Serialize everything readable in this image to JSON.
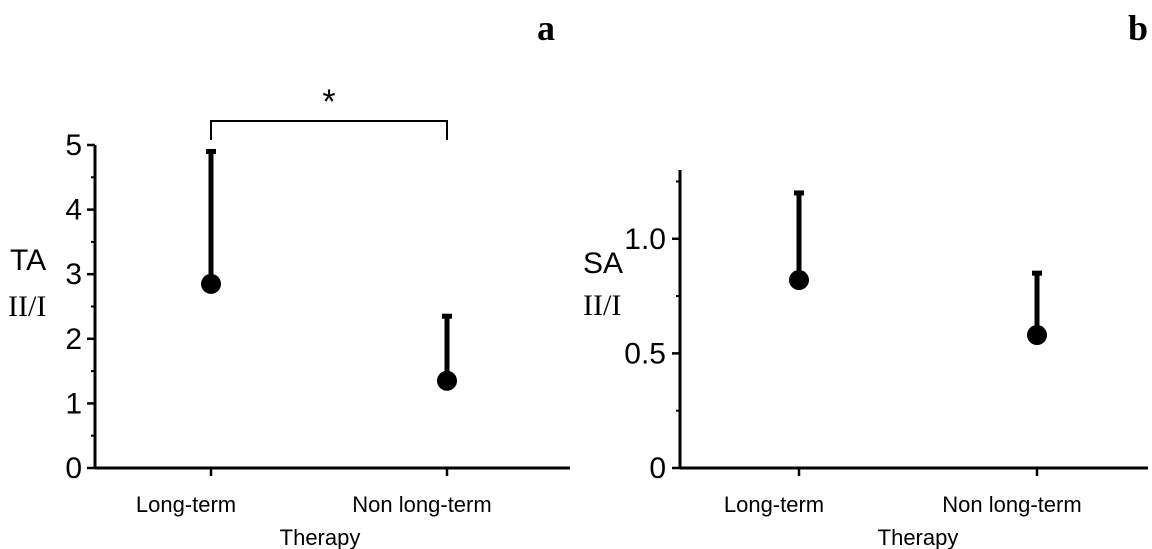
{
  "chart_data": [
    {
      "panel_letter": "a",
      "type": "scatter",
      "ylabel_top": "TA",
      "ylabel_bottom": "II/I",
      "xlabel": "Therapy",
      "categories": [
        "Long-term",
        "Non long-term"
      ],
      "values": [
        2.85,
        1.35
      ],
      "error_upper": [
        4.9,
        2.35
      ],
      "ylim": [
        0,
        5
      ],
      "yticks": [
        {
          "value": 0,
          "label": "0"
        },
        {
          "value": 1,
          "label": "1"
        },
        {
          "value": 2,
          "label": "2"
        },
        {
          "value": 3,
          "label": "3"
        },
        {
          "value": 4,
          "label": "4"
        },
        {
          "value": 5,
          "label": "5"
        }
      ],
      "significance": {
        "label": "*",
        "between": [
          "Long-term",
          "Non long-term"
        ]
      },
      "grid": false,
      "legend": "none"
    },
    {
      "panel_letter": "b",
      "type": "scatter",
      "ylabel_top": "SA",
      "ylabel_bottom": "II/I",
      "xlabel": "Therapy",
      "categories": [
        "Long-term",
        "Non long-term"
      ],
      "values": [
        0.82,
        0.58
      ],
      "error_upper": [
        1.2,
        0.85
      ],
      "ylim": [
        0,
        1.3
      ],
      "yticks": [
        {
          "value": 0,
          "label": "0"
        },
        {
          "value": 0.5,
          "label": "0.5"
        },
        {
          "value": 1.0,
          "label": "1.0"
        }
      ],
      "grid": false,
      "legend": "none"
    }
  ]
}
